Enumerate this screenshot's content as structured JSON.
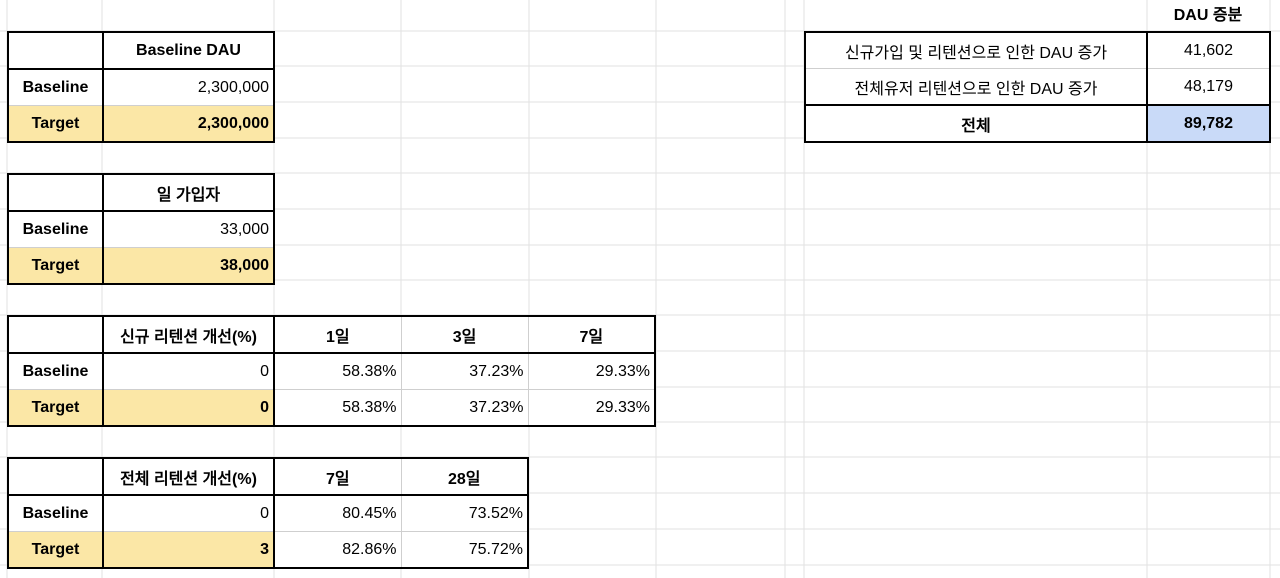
{
  "dau_table": {
    "header": "Baseline DAU",
    "rows": [
      {
        "label": "Baseline",
        "value": "2,300,000"
      },
      {
        "label": "Target",
        "value": "2,300,000"
      }
    ]
  },
  "signup_table": {
    "header": "일 가입자",
    "rows": [
      {
        "label": "Baseline",
        "value": "33,000"
      },
      {
        "label": "Target",
        "value": "38,000"
      }
    ]
  },
  "new_retention_table": {
    "headers": [
      "신규 리텐션 개선(%)",
      "1일",
      "3일",
      "7일"
    ],
    "rows": [
      {
        "label": "Baseline",
        "values": [
          "0",
          "58.38%",
          "37.23%",
          "29.33%"
        ]
      },
      {
        "label": "Target",
        "values": [
          "0",
          "58.38%",
          "37.23%",
          "29.33%"
        ]
      }
    ]
  },
  "total_retention_table": {
    "headers": [
      "전체 리텐션 개선(%)",
      "7일",
      "28일"
    ],
    "rows": [
      {
        "label": "Baseline",
        "values": [
          "0",
          "80.45%",
          "73.52%"
        ]
      },
      {
        "label": "Target",
        "values": [
          "3",
          "82.86%",
          "75.72%"
        ]
      }
    ]
  },
  "dau_increment": {
    "header": "DAU 증분",
    "rows": [
      {
        "label": "신규가입 및 리텐션으로 인한 DAU 증가",
        "value": "41,602"
      },
      {
        "label": "전체유저 리텐션으로 인한 DAU 증가",
        "value": "48,179"
      },
      {
        "label": "전체",
        "value": "89,782"
      }
    ]
  },
  "colors": {
    "target_fill": "#fbe7a6",
    "total_fill": "#c9daf8",
    "gridline": "#e2e2e2",
    "border": "#000000"
  }
}
